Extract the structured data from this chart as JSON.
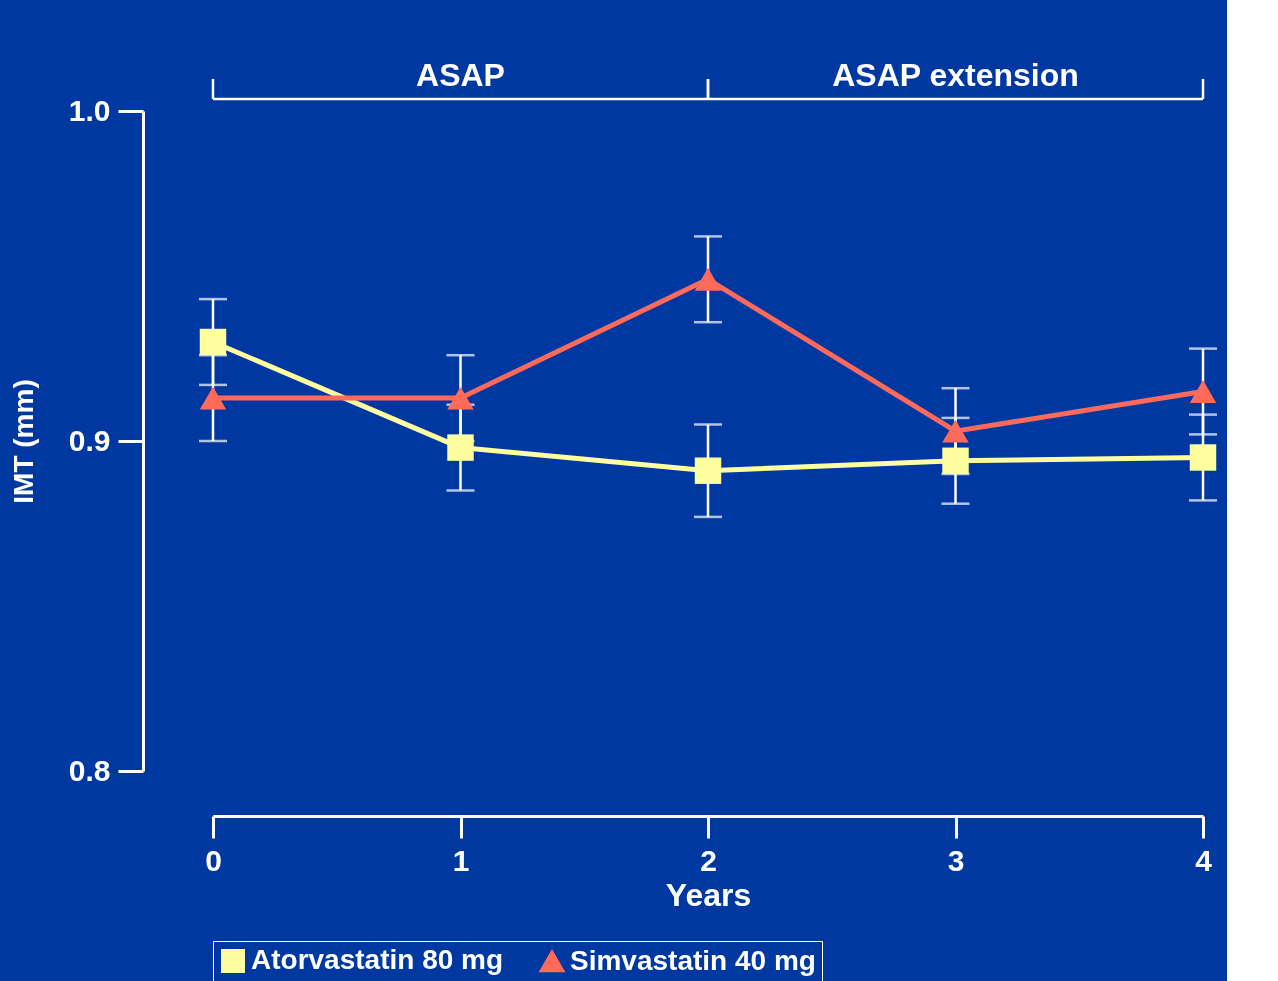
{
  "chart_data": {
    "type": "line",
    "xlabel": "Years",
    "ylabel": "IMT (mm)",
    "x": [
      0,
      1,
      2,
      3,
      4
    ],
    "xlim": [
      0,
      4
    ],
    "xticks": [
      0,
      1,
      2,
      3,
      4
    ],
    "ylim": [
      0.8,
      1.0
    ],
    "yticks": [
      {
        "value": 0.8,
        "label": "0.8"
      },
      {
        "value": 0.9,
        "label": "0.9"
      },
      {
        "value": 1.0,
        "label": "1.0"
      }
    ],
    "series": [
      {
        "name": "Atorvastatin 80 mg",
        "color": "#ffffa0",
        "marker": "square",
        "values": [
          0.93,
          0.898,
          0.891,
          0.894,
          0.895
        ],
        "errors": [
          0.013,
          0.013,
          0.014,
          0.013,
          0.013
        ]
      },
      {
        "name": "Simvastatin 40 mg",
        "color": "#ff6a5a",
        "marker": "triangle",
        "values": [
          0.913,
          0.913,
          0.949,
          0.903,
          0.915
        ],
        "errors": [
          0.013,
          0.013,
          0.013,
          0.013,
          0.013
        ]
      }
    ],
    "annotations": [
      "ASAP",
      "ASAP extension"
    ],
    "grid": false,
    "legend": "bottom",
    "line_style": "solid"
  }
}
